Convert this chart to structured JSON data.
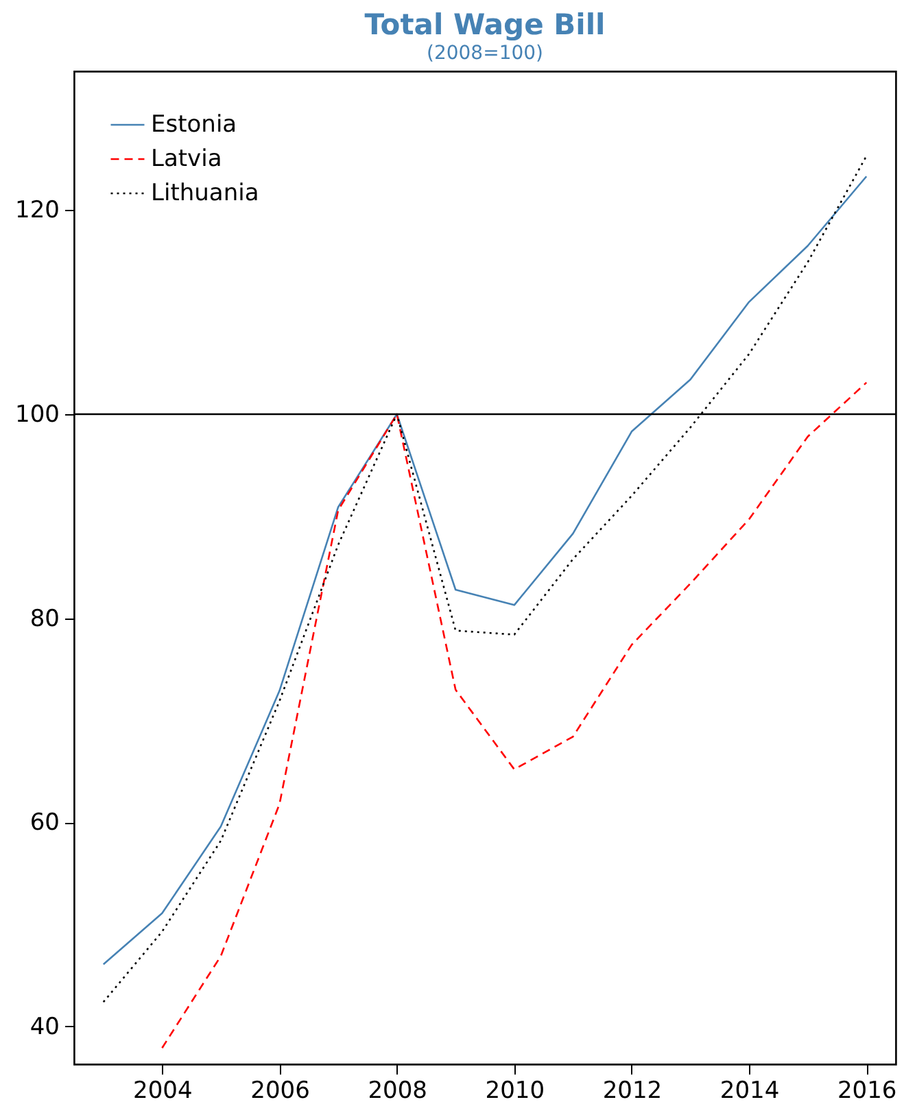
{
  "chart_data": {
    "type": "line",
    "title": "Total Wage Bill",
    "subtitle": "(2008=100)",
    "x": [
      2003,
      2004,
      2005,
      2006,
      2007,
      2008,
      2009,
      2010,
      2011,
      2012,
      2013,
      2014,
      2015,
      2016
    ],
    "series": [
      {
        "name": "Estonia",
        "color": "#4682b4",
        "line_style": "solid",
        "values": [
          46.1,
          51.1,
          59.6,
          72.9,
          90.9,
          100,
          82.8,
          81.3,
          88.3,
          98.3,
          103.4,
          111.0,
          116.5,
          123.3
        ]
      },
      {
        "name": "Latvia",
        "color": "#ff0000",
        "line_style": "dashed",
        "values": [
          null,
          37.9,
          46.9,
          61.8,
          90.6,
          100,
          73.0,
          65.2,
          68.4,
          77.4,
          83.4,
          89.7,
          97.8,
          103.1
        ]
      },
      {
        "name": "Lithuania",
        "color": "#000000",
        "line_style": "dotted",
        "values": [
          42.4,
          49.3,
          58.2,
          71.9,
          87.2,
          100,
          78.8,
          78.4,
          85.8,
          92.0,
          98.7,
          105.9,
          114.9,
          125.3
        ]
      }
    ],
    "xlim": [
      2002.5,
      2016.5
    ],
    "xticks": [
      2004,
      2006,
      2008,
      2010,
      2012,
      2014,
      2016
    ],
    "ylim": [
      36.3,
      133.6
    ],
    "yticks": [
      40,
      60,
      80,
      100,
      120
    ],
    "ref_lines": [
      {
        "axis": "y",
        "value": 100,
        "color": "#000000",
        "line_style": "solid"
      }
    ],
    "grid": false,
    "legend": "top left"
  }
}
